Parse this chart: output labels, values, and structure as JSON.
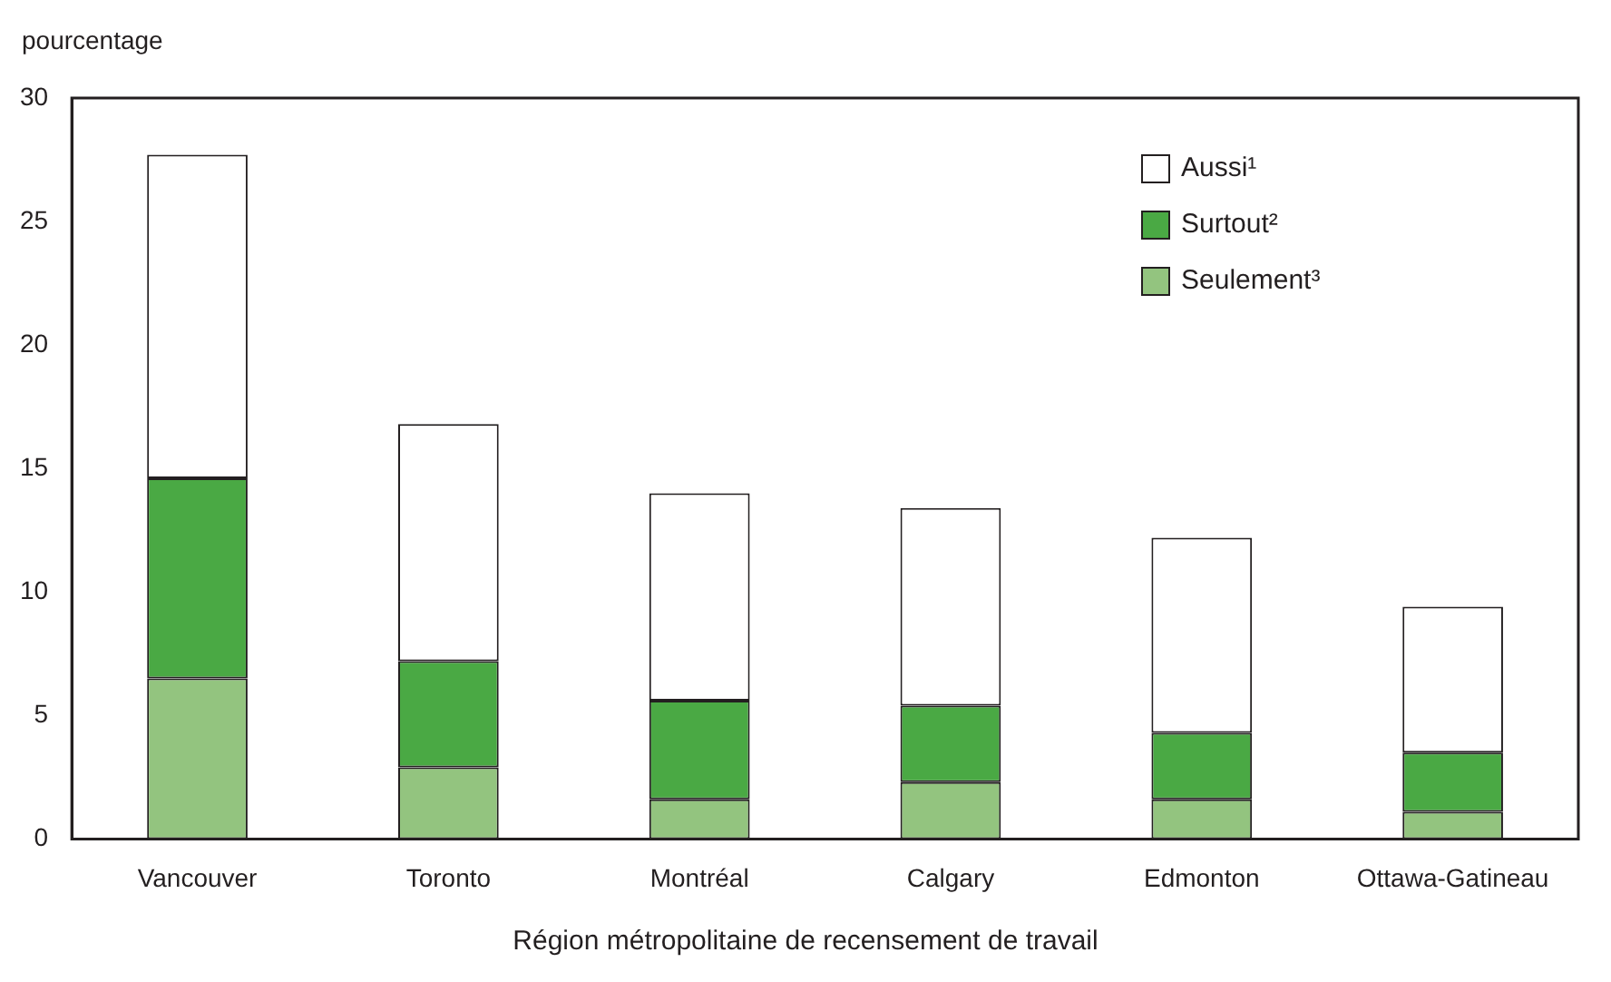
{
  "chart_data": {
    "type": "bar",
    "stacked": true,
    "ylabel": "pourcentage",
    "xlabel": "Région métropolitaine de recensement de travail",
    "categories": [
      "Vancouver",
      "Toronto",
      "Montréal",
      "Calgary",
      "Edmonton",
      "Ottawa-Gatineau"
    ],
    "series": [
      {
        "name": "Seulement³",
        "color": "#93c47f",
        "values": [
          6.5,
          2.9,
          1.6,
          2.3,
          1.6,
          1.1
        ]
      },
      {
        "name": "Surtout²",
        "color": "#4aa944",
        "values": [
          8.1,
          4.3,
          4.0,
          3.1,
          2.7,
          2.4
        ]
      },
      {
        "name": "Aussi¹",
        "color": "#ffffff",
        "values": [
          13.1,
          9.6,
          8.4,
          8.0,
          7.9,
          5.9
        ]
      }
    ],
    "ylim": [
      0,
      30
    ],
    "yticks": [
      0,
      5,
      10,
      15,
      20,
      25,
      30
    ],
    "grid": false,
    "legend": "top right"
  }
}
